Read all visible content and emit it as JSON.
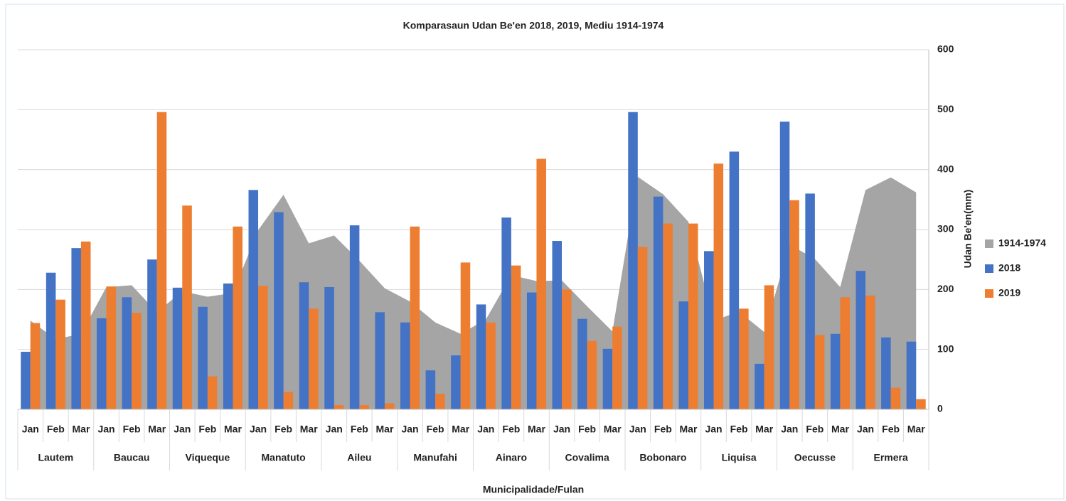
{
  "chart_data": {
    "type": "bar_area",
    "title": "Komparasaun Udan Be'en 2018, 2019, Mediu 1914-1974",
    "x_label": "Municipalidade/Fulan",
    "y_label": "Udan Be'en(mm)",
    "categories": [
      "Jan",
      "Feb",
      "Mar",
      "Jan",
      "Feb",
      "Mar",
      "Jan",
      "Feb",
      "Mar",
      "Jan",
      "Feb",
      "Mar",
      "Jan",
      "Feb",
      "Mar",
      "Jan",
      "Feb",
      "Mar",
      "Jan",
      "Feb",
      "Mar",
      "Jan",
      "Feb",
      "Mar",
      "Jan",
      "Feb",
      "Mar",
      "Jan",
      "Feb",
      "Mar",
      "Jan",
      "Feb",
      "Mar",
      "Jan",
      "Feb",
      "Mar"
    ],
    "groups": [
      "Lautem",
      "Baucau",
      "Viqueque",
      "Manatuto",
      "Aileu",
      "Manufahi",
      "Ainaro",
      "Covalima",
      "Bobonaro",
      "Liquisa",
      "Oecusse",
      "Ermera"
    ],
    "series": [
      {
        "name": "1914-1974",
        "type": "area",
        "color": "#a5a5a5",
        "values": [
          148,
          117,
          126,
          204,
          207,
          162,
          197,
          188,
          194,
          299,
          358,
          277,
          290,
          248,
          202,
          180,
          145,
          126,
          150,
          224,
          214,
          215,
          172,
          130,
          388,
          359,
          313,
          148,
          163,
          129,
          275,
          251,
          204,
          366,
          387,
          362
        ]
      },
      {
        "name": "2018",
        "type": "bar",
        "color": "#4472c4",
        "values": [
          96,
          228,
          269,
          152,
          187,
          250,
          203,
          171,
          210,
          366,
          329,
          212,
          204,
          307,
          162,
          145,
          65,
          90,
          175,
          320,
          195,
          281,
          151,
          101,
          496,
          355,
          180,
          264,
          430,
          76,
          480,
          360,
          126,
          231,
          120,
          113
        ]
      },
      {
        "name": "2019",
        "type": "bar",
        "color": "#ed7d31",
        "values": [
          144,
          183,
          280,
          205,
          161,
          496,
          340,
          55,
          305,
          206,
          29,
          168,
          7,
          7,
          10,
          305,
          26,
          245,
          145,
          240,
          418,
          200,
          114,
          138,
          271,
          310,
          310,
          410,
          168,
          207,
          349,
          124,
          187,
          190,
          36,
          17
        ]
      }
    ],
    "ylim": [
      0,
      600
    ],
    "yticks": [
      0,
      100,
      200,
      300,
      400,
      500,
      600
    ],
    "grid": true,
    "legend": "right"
  }
}
